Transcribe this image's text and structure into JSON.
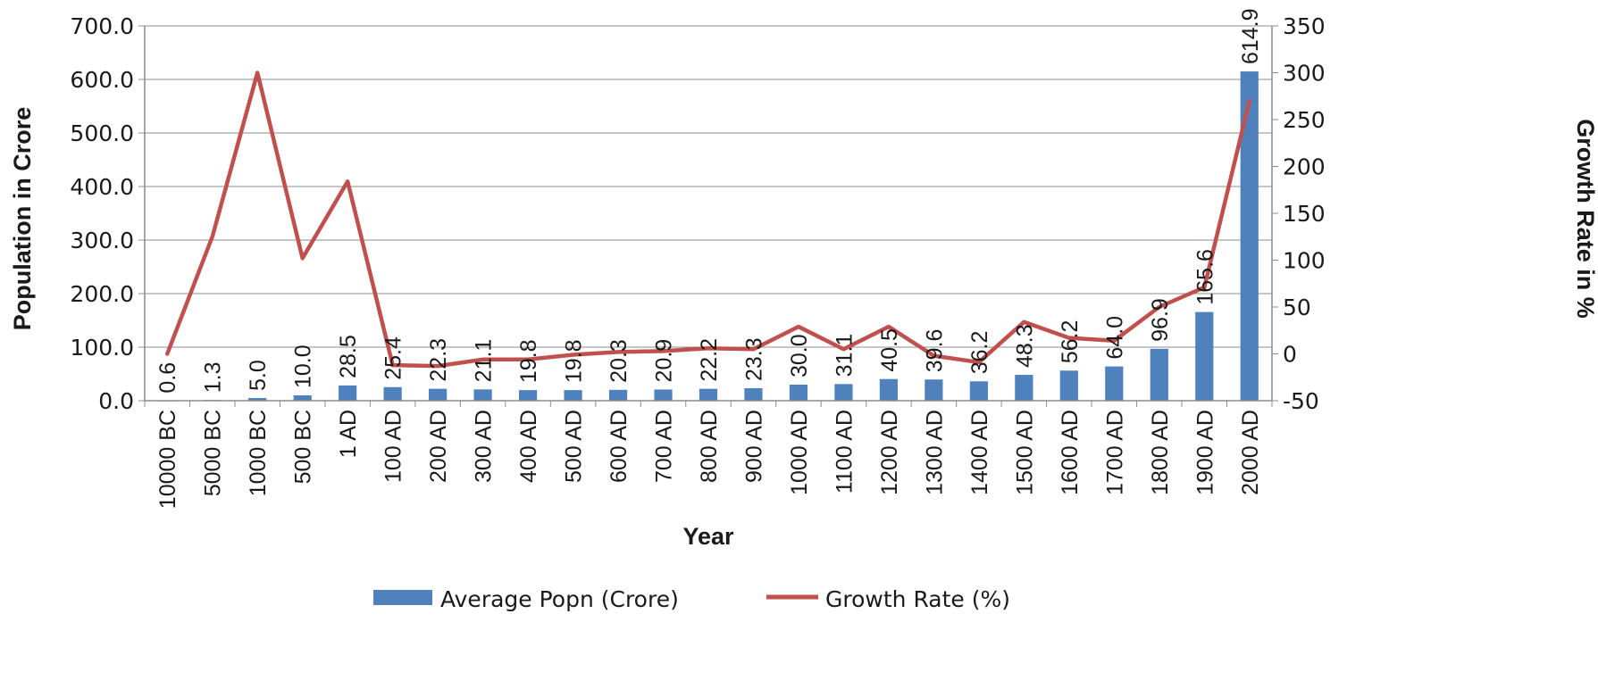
{
  "chart_data": {
    "type": "bar",
    "categories": [
      "10000 BC",
      "5000 BC",
      "1000 BC",
      "500 BC",
      "1 AD",
      "100 AD",
      "200 AD",
      "300 AD",
      "400 AD",
      "500 AD",
      "600 AD",
      "700 AD",
      "800 AD",
      "900 AD",
      "1000 AD",
      "1100 AD",
      "1200 AD",
      "1300 AD",
      "1400 AD",
      "1500 AD",
      "1600 AD",
      "1700 AD",
      "1800 AD",
      "1900 AD",
      "2000 AD"
    ],
    "series": [
      {
        "name": "Average Popn (Crore)",
        "type": "bar",
        "axis": "left",
        "color": "#4f81bd",
        "values": [
          0.6,
          1.3,
          5.0,
          10.0,
          28.5,
          25.4,
          22.3,
          21.1,
          19.8,
          19.8,
          20.3,
          20.9,
          22.2,
          23.3,
          30.0,
          31.1,
          40.5,
          39.6,
          36.2,
          48.3,
          56.2,
          64.0,
          96.9,
          165.6,
          614.9
        ],
        "labels": [
          "0.6",
          "1.3",
          "5.0",
          "10.0",
          "28.5",
          "25.4",
          "22.3",
          "21.1",
          "19.8",
          "19.8",
          "20.3",
          "20.9",
          "22.2",
          "23.3",
          "30.0",
          "31.1",
          "40.5",
          "39.6",
          "36.2",
          "48.3",
          "56.2",
          "64.0",
          "96.9",
          "165.6",
          "614.9"
        ]
      },
      {
        "name": "Growth Rate (%)",
        "type": "line",
        "axis": "right",
        "color": "#c0504d",
        "values": [
          0,
          125,
          300,
          102,
          184,
          -12,
          -13,
          -6,
          -6,
          -1,
          2,
          3,
          6,
          5,
          29,
          5,
          29,
          -2,
          -9,
          34,
          17,
          14,
          50,
          71,
          270
        ]
      }
    ],
    "xlabel": "Year",
    "ylabel": "Population in Crore",
    "y2label": "Growth Rate in %",
    "ylim": [
      0,
      700
    ],
    "y2lim": [
      -50,
      350
    ],
    "yticks": [
      "0.0",
      "100.0",
      "200.0",
      "300.0",
      "400.0",
      "500.0",
      "600.0",
      "700.0"
    ],
    "y2ticks": [
      "-50",
      "0",
      "50",
      "100",
      "150",
      "200",
      "250",
      "300",
      "350"
    ],
    "grid": true,
    "legend": "bottom"
  }
}
